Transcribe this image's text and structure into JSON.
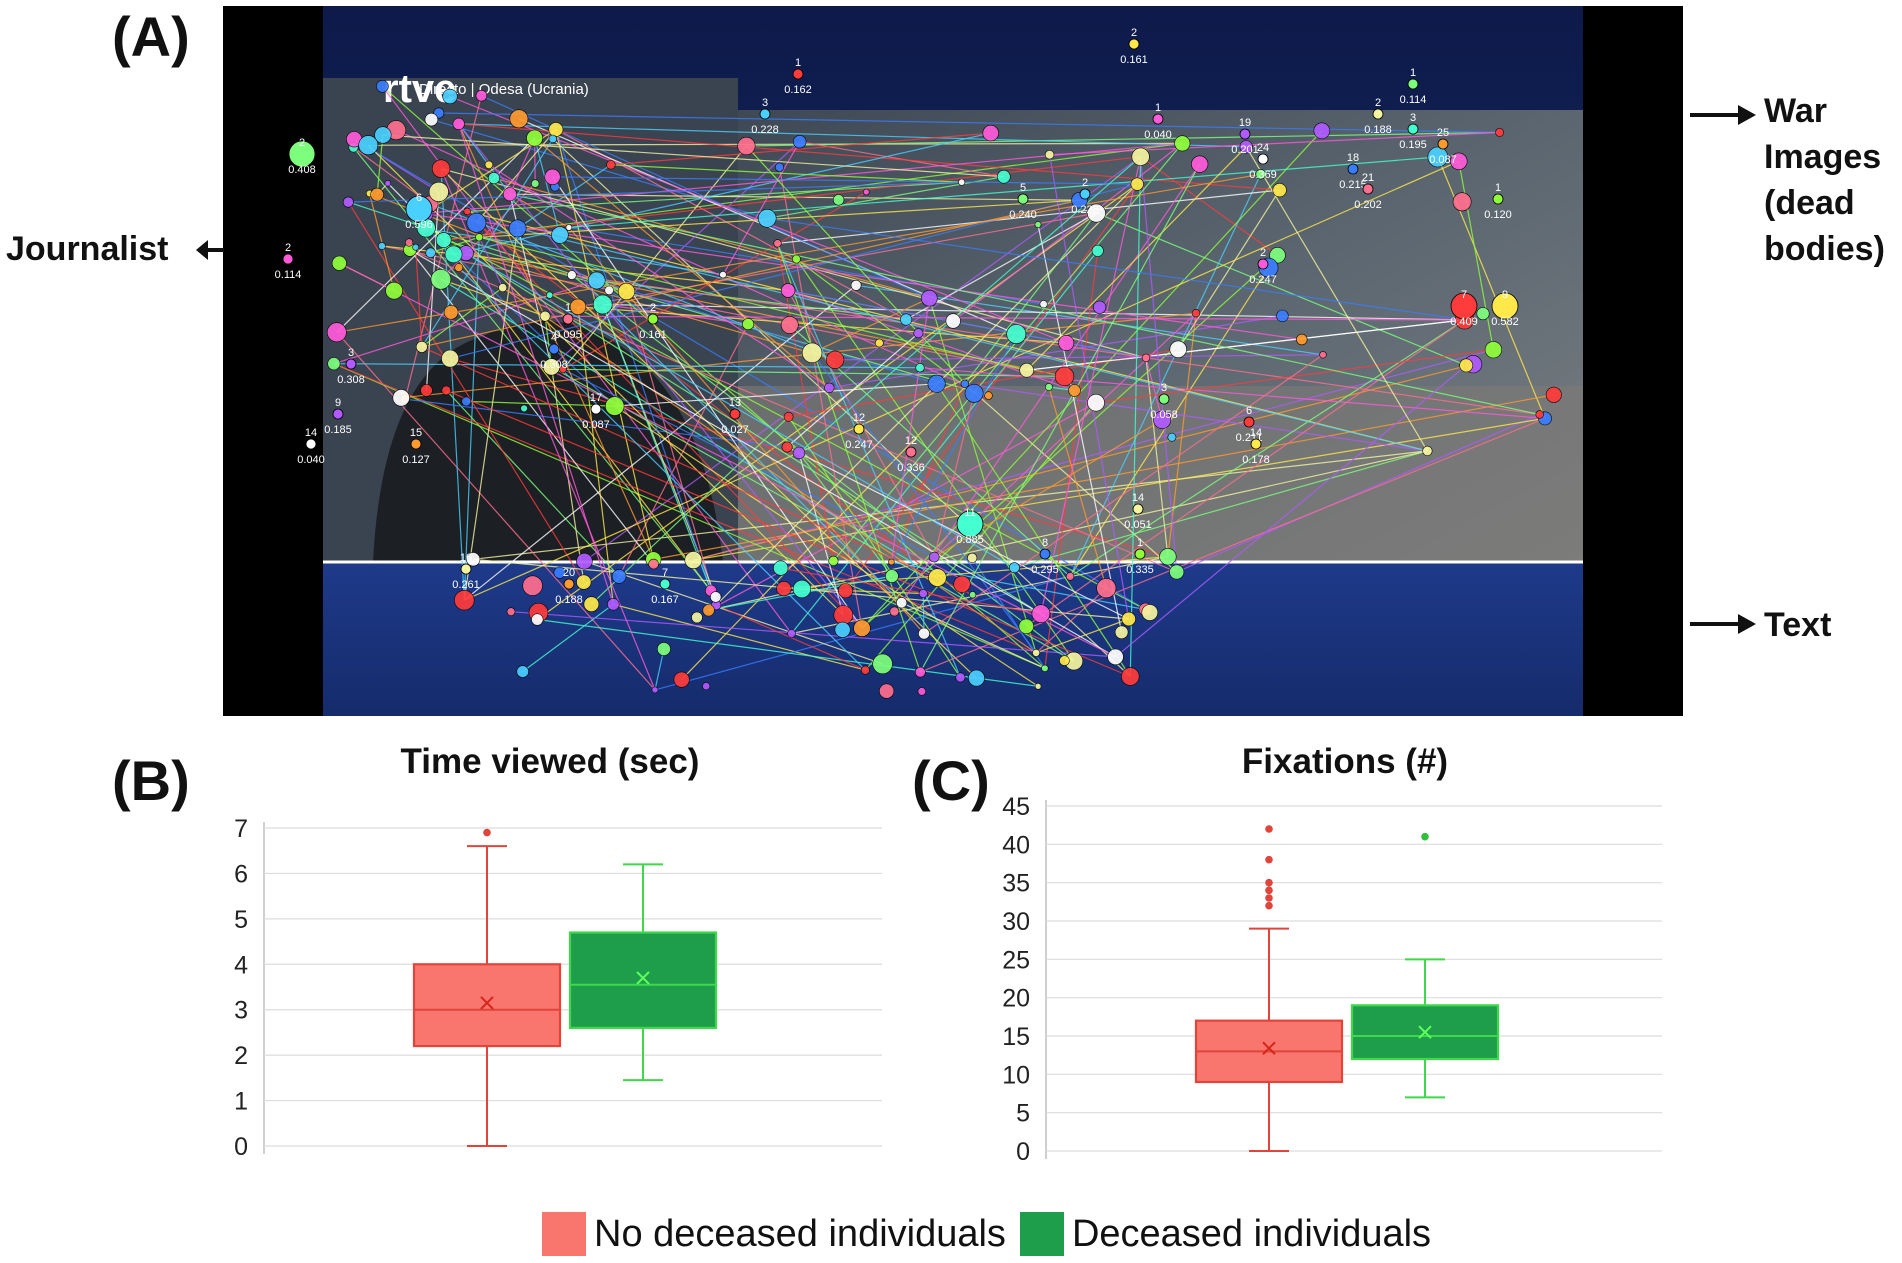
{
  "panels": {
    "a": "(A)",
    "b": "(B)",
    "c": "(C)"
  },
  "panel_a": {
    "overlay_logo": "rtve",
    "overlay_caption": "Directo | Odesa (Ucrania)",
    "labels": {
      "war_images": [
        "War",
        "Images",
        "(dead",
        "bodies)"
      ],
      "journalist": "Journalist",
      "text": "Text"
    },
    "fixation_markers": [
      {
        "n": "1",
        "d": "0.162"
      },
      {
        "n": "2",
        "d": "0.161"
      },
      {
        "n": "1",
        "d": "0.114"
      },
      {
        "n": "3",
        "d": "0.228"
      },
      {
        "n": "1",
        "d": "0.040"
      },
      {
        "n": "19",
        "d": "0.201"
      },
      {
        "n": "24",
        "d": "0.369"
      },
      {
        "n": "25",
        "d": "0.087"
      },
      {
        "n": "3",
        "d": "0.195"
      },
      {
        "n": "2",
        "d": "0.188"
      },
      {
        "n": "18",
        "d": "0.215"
      },
      {
        "n": "21",
        "d": "0.202"
      },
      {
        "n": "1",
        "d": "0.120"
      },
      {
        "n": "7",
        "d": "0.409"
      },
      {
        "n": "9",
        "d": "0.582"
      },
      {
        "n": "2",
        "d": "0.408"
      },
      {
        "n": "6",
        "d": "0.596"
      },
      {
        "n": "2",
        "d": "0.114"
      },
      {
        "n": "9",
        "d": "0.185"
      },
      {
        "n": "14",
        "d": "0.040"
      },
      {
        "n": "15",
        "d": "0.127"
      },
      {
        "n": "11",
        "d": "0.885"
      },
      {
        "n": "14",
        "d": "0.051"
      },
      {
        "n": "8",
        "d": "0.295"
      },
      {
        "n": "1",
        "d": "0.095"
      },
      {
        "n": "2",
        "d": "0.161"
      },
      {
        "n": "13",
        "d": "0.027"
      },
      {
        "n": "12",
        "d": "0.247"
      },
      {
        "n": "5",
        "d": "0.240"
      },
      {
        "n": "2",
        "d": "0.228"
      },
      {
        "n": "2",
        "d": "0.247"
      },
      {
        "n": "3",
        "d": "0.308"
      },
      {
        "n": "17",
        "d": "0.087"
      },
      {
        "n": "20",
        "d": "0.188"
      },
      {
        "n": "7",
        "d": "0.167"
      },
      {
        "n": "16",
        "d": "0.261"
      },
      {
        "n": "4",
        "d": "0.308"
      },
      {
        "n": "12",
        "d": "0.336"
      },
      {
        "n": "1",
        "d": "0.335"
      },
      {
        "n": "6",
        "d": "0.211"
      },
      {
        "n": "14",
        "d": "0.178"
      },
      {
        "n": "3",
        "d": "0.058"
      }
    ]
  },
  "legend": [
    {
      "label": "No deceased individuals",
      "color": "#f8766d"
    },
    {
      "label": "Deceased individuals",
      "color": "#1e9e4a"
    }
  ],
  "chart_data": [
    {
      "type": "box",
      "title": "Time viewed (sec)",
      "xlabel": "",
      "ylabel": "",
      "ylim": [
        0,
        7
      ],
      "yticks": [
        0,
        1,
        2,
        3,
        4,
        5,
        6,
        7
      ],
      "grid": true,
      "series": [
        {
          "name": "No deceased individuals",
          "color": "#f8766d",
          "stroke": "#e0443a",
          "min": 0,
          "q1": 2.2,
          "median": 3.0,
          "q3": 4.0,
          "max": 6.6,
          "mean": 3.15,
          "outliers": [
            6.9
          ]
        },
        {
          "name": "Deceased individuals",
          "color": "#1e9e4a",
          "stroke": "#3ed84a",
          "min": 1.45,
          "q1": 2.6,
          "median": 3.55,
          "q3": 4.7,
          "max": 6.2,
          "mean": 3.7,
          "outliers": []
        }
      ]
    },
    {
      "type": "box",
      "title": "Fixations (#)",
      "xlabel": "",
      "ylabel": "",
      "ylim": [
        0,
        45
      ],
      "yticks": [
        0,
        5,
        10,
        15,
        20,
        25,
        30,
        35,
        40,
        45
      ],
      "grid": true,
      "series": [
        {
          "name": "No deceased individuals",
          "color": "#f8766d",
          "stroke": "#e0443a",
          "min": 0,
          "q1": 9,
          "median": 13,
          "q3": 17,
          "max": 29,
          "mean": 13.4,
          "outliers": [
            32,
            33,
            34,
            35,
            38,
            42
          ]
        },
        {
          "name": "Deceased individuals",
          "color": "#1e9e4a",
          "stroke": "#3ed84a",
          "min": 7,
          "q1": 12,
          "median": 15,
          "q3": 19,
          "max": 25,
          "mean": 15.5,
          "outliers": [
            41
          ]
        }
      ]
    }
  ]
}
